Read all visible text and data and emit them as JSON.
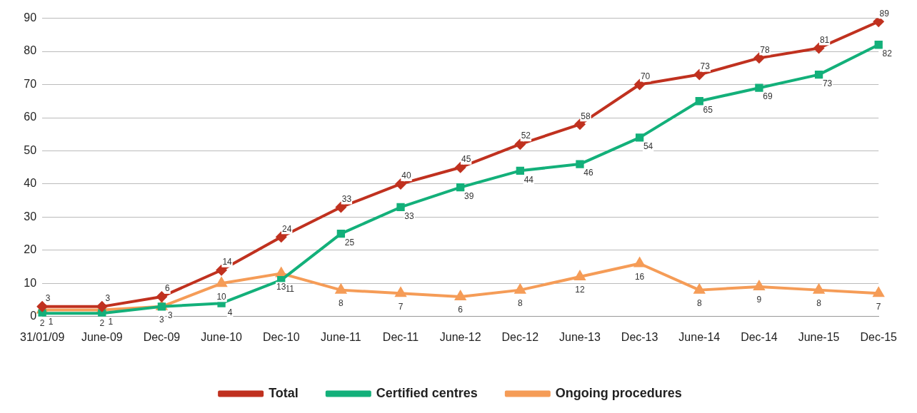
{
  "chart_data": {
    "type": "line",
    "categories": [
      "31/01/09",
      "June-09",
      "Dec-09",
      "June-10",
      "Dec-10",
      "June-11",
      "Dec-11",
      "June-12",
      "Dec-12",
      "June-13",
      "Dec-13",
      "June-14",
      "Dec-14",
      "June-15",
      "Dec-15"
    ],
    "series": [
      {
        "name": "Total",
        "color": "#c0311f",
        "marker": "diamond",
        "values": [
          3,
          3,
          6,
          14,
          24,
          33,
          40,
          45,
          52,
          58,
          70,
          73,
          78,
          81,
          89
        ]
      },
      {
        "name": "Certified centres",
        "color": "#13b07a",
        "marker": "square",
        "values": [
          1,
          1,
          3,
          4,
          11,
          25,
          33,
          39,
          44,
          46,
          54,
          65,
          69,
          73,
          82
        ]
      },
      {
        "name": "Ongoing procedures",
        "color": "#f59c57",
        "marker": "triangle",
        "values": [
          2,
          2,
          3,
          10,
          13,
          8,
          7,
          6,
          8,
          12,
          16,
          8,
          9,
          8,
          7
        ]
      }
    ],
    "ylim": [
      0,
      90
    ],
    "yticks": [
      0,
      10,
      20,
      30,
      40,
      50,
      60,
      70,
      80,
      90
    ],
    "grid": "y",
    "legend": "bottom",
    "data_labels": true,
    "line_style": "solid"
  }
}
